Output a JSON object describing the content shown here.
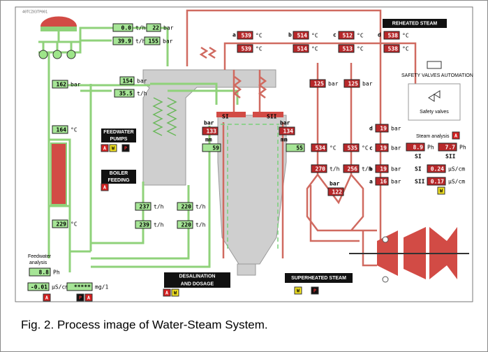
{
  "screen": {
    "tag": "40TCZ03TP001",
    "headings": [
      [
        "REHEATED STEAM"
      ],
      [
        "FEEDWATER",
        "PUMPS"
      ],
      [
        "BOILER",
        "FEEDING"
      ],
      [
        "DESALINATION",
        "AND DOSAGE"
      ],
      [
        "SUPERHEATED STEAM"
      ]
    ],
    "labels": [
      "a",
      "b",
      "c",
      "d",
      "SAFETY VALVES AUTOMATION",
      "Safety valves",
      "SI",
      "SII",
      "bar",
      "mm",
      "bar",
      "mm",
      "d",
      "c",
      "b",
      "a",
      "Steam analysis",
      "SI",
      "SII",
      "SI",
      "SII",
      "bar",
      "Feedwater",
      "analysis"
    ],
    "readings": [
      {
        "value": "0.0",
        "unit": "t/h"
      },
      {
        "value": "22",
        "unit": "bar"
      },
      {
        "value": "39.9",
        "unit": "t/h"
      },
      {
        "value": "155",
        "unit": "bar"
      },
      {
        "value": "162",
        "unit": "bar"
      },
      {
        "value": "154",
        "unit": "bar"
      },
      {
        "value": "35.5",
        "unit": "t/h"
      },
      {
        "value": "164",
        "unit": "°C"
      },
      {
        "value": "229",
        "unit": "°C"
      },
      {
        "value": "237",
        "unit": "t/h"
      },
      {
        "value": "220",
        "unit": "t/h"
      },
      {
        "value": "239",
        "unit": "t/h"
      },
      {
        "value": "220",
        "unit": "t/h"
      },
      {
        "value": "8.8",
        "unit": "Ph"
      },
      {
        "value": "-0.01",
        "unit": "µS/cm"
      },
      {
        "value": "*****",
        "unit": "mg/1"
      },
      {
        "value": "539",
        "unit": "°C"
      },
      {
        "value": "514",
        "unit": "°C"
      },
      {
        "value": "512",
        "unit": "°C"
      },
      {
        "value": "538",
        "unit": "°C"
      },
      {
        "value": "539",
        "unit": "°C"
      },
      {
        "value": "514",
        "unit": "°C"
      },
      {
        "value": "513",
        "unit": "°C"
      },
      {
        "value": "538",
        "unit": "°C"
      },
      {
        "value": "125",
        "unit": "bar"
      },
      {
        "value": "125",
        "unit": "bar"
      },
      {
        "value": "534",
        "unit": "°C"
      },
      {
        "value": "535",
        "unit": "°C"
      },
      {
        "value": "270",
        "unit": "t/h"
      },
      {
        "value": "256",
        "unit": "t/h"
      },
      {
        "value": "19",
        "unit": "bar"
      },
      {
        "value": "19",
        "unit": "bar"
      },
      {
        "value": "19",
        "unit": "bar"
      },
      {
        "value": "16",
        "unit": "bar"
      },
      {
        "value": "8.9",
        "unit": "Ph"
      },
      {
        "value": "7.7",
        "unit": "Ph"
      },
      {
        "value": "0.24",
        "unit": "µS/cm"
      },
      {
        "value": "0.17",
        "unit": "µS/cm"
      },
      {
        "value": "133"
      },
      {
        "value": "59"
      },
      {
        "value": "134"
      },
      {
        "value": "55"
      },
      {
        "value": "122"
      }
    ],
    "indicators": [
      "A",
      "W",
      "A",
      "W",
      "P",
      "A",
      "A",
      "P",
      "A",
      "A",
      "W",
      "W",
      "P"
    ]
  },
  "caption": "Fig. 2. Process image of Water-Steam System."
}
